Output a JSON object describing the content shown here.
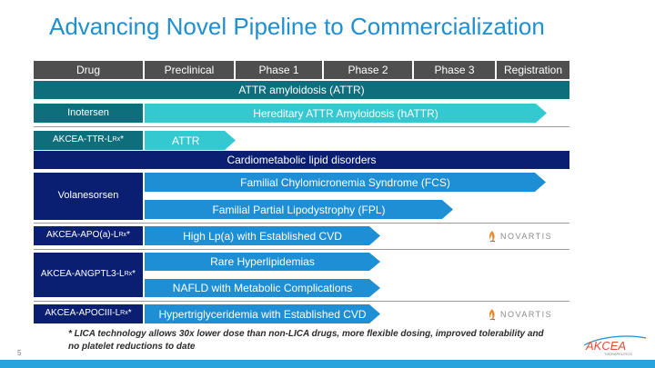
{
  "title": "Advancing Novel Pipeline to Commercialization",
  "header": [
    "Drug",
    "Preclinical",
    "Phase 1",
    "Phase 2",
    "Phase 3",
    "Registration"
  ],
  "categories": {
    "attr": "ATTR amyloidosis (ATTR)",
    "cardio": "Cardiometabolic lipid disorders"
  },
  "drugs": {
    "inotersen": "Inotersen",
    "ttr_main": "AKCEA-TTR-L",
    "ttr_sub": "Rx",
    "ttr_tail": " *",
    "volanesorsen": "Volanesorsen",
    "apoa_main": "AKCEA-APO(a)-L",
    "apoa_sub": "Rx",
    "apoa_tail": "*",
    "angptl3_main": "AKCEA-ANGPTL3-L",
    "angptl3_sub": "Rx",
    "angptl3_tail": "*",
    "apociii_main": "AKCEA-APOCIII-L",
    "apociii_sub": "Rx",
    "apociii_tail": "*"
  },
  "programs": {
    "hattr": "Hereditary ATTR Amyloidosis (hATTR)",
    "attr": "ATTR",
    "fcs": "Familial Chylomicronemia Syndrome (FCS)",
    "fpl": "Familial Partial Lipodystrophy (FPL)",
    "lpa": "High Lp(a) with Established CVD",
    "rare": "Rare Hyperlipidemias",
    "nafld": "NAFLD with Metabolic Complications",
    "hypertg": "Hypertriglyceridemia with Established CVD"
  },
  "partner": "NOVARTIS",
  "footnote": "* LICA technology allows 30x lower dose than non-LICA drugs, more flexible dosing, improved tolerability and no platelet reductions to date",
  "page_number": "5",
  "logo": {
    "name": "AKCEA",
    "tagline": "THERAPEUTICS"
  },
  "colors": {
    "title": "#1f8fce",
    "header": "#4f4f4f",
    "teal_drug": "#0f6e7c",
    "navy_drug": "#0b1f72",
    "teal_arrow": "#34c8d0",
    "blue_arrow": "#1e8fd5",
    "bottom_bar": "#29a3db"
  }
}
